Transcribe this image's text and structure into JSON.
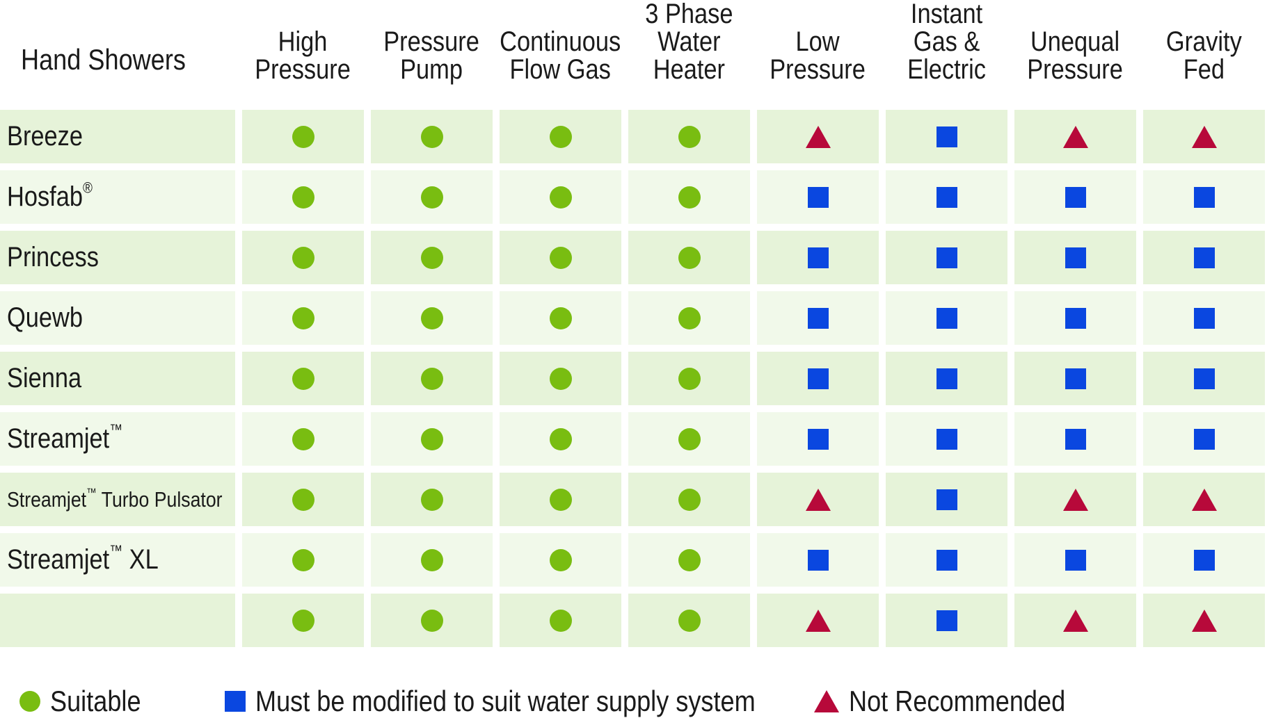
{
  "table": {
    "title": "Hand Showers",
    "columns": [
      "High\nPressure",
      "Pressure\nPump",
      "Continuous\nFlow Gas",
      "3 Phase\nWater\nHeater",
      "Low\nPressure",
      "Instant\nGas &\nElectric",
      "Unequal\nPressure",
      "Gravity\nFed"
    ],
    "rows": [
      {
        "name": "Breeze",
        "mark": "",
        "values": [
          "suitable",
          "suitable",
          "suitable",
          "suitable",
          "not-recommended",
          "modify",
          "not-recommended",
          "not-recommended"
        ]
      },
      {
        "name": "Hosfab",
        "mark": "®",
        "values": [
          "suitable",
          "suitable",
          "suitable",
          "suitable",
          "modify",
          "modify",
          "modify",
          "modify"
        ]
      },
      {
        "name": "Princess",
        "mark": "",
        "values": [
          "suitable",
          "suitable",
          "suitable",
          "suitable",
          "modify",
          "modify",
          "modify",
          "modify"
        ]
      },
      {
        "name": "Quewb",
        "mark": "",
        "values": [
          "suitable",
          "suitable",
          "suitable",
          "suitable",
          "modify",
          "modify",
          "modify",
          "modify"
        ]
      },
      {
        "name": "Sienna",
        "mark": "",
        "values": [
          "suitable",
          "suitable",
          "suitable",
          "suitable",
          "modify",
          "modify",
          "modify",
          "modify"
        ]
      },
      {
        "name": "Streamjet",
        "mark": "™",
        "values": [
          "suitable",
          "suitable",
          "suitable",
          "suitable",
          "modify",
          "modify",
          "modify",
          "modify"
        ]
      },
      {
        "name": "Streamjet",
        "mark": "™",
        "suffix": " Turbo Pulsator",
        "small": true,
        "values": [
          "suitable",
          "suitable",
          "suitable",
          "suitable",
          "not-recommended",
          "modify",
          "not-recommended",
          "not-recommended"
        ]
      },
      {
        "name": "Streamjet",
        "mark": "™",
        "suffix": " XL",
        "values": [
          "suitable",
          "suitable",
          "suitable",
          "suitable",
          "modify",
          "modify",
          "modify",
          "modify"
        ]
      },
      {
        "name": "",
        "mark": "",
        "values": [
          "suitable",
          "suitable",
          "suitable",
          "suitable",
          "not-recommended",
          "modify",
          "not-recommended",
          "not-recommended"
        ]
      }
    ]
  },
  "legend": {
    "suitable": "Suitable",
    "modify": "Must be modified to suit water supply system",
    "not_recommended": "Not Recommended"
  },
  "colors": {
    "suitable": "#79bd11",
    "modify": "#0a47e0",
    "not_recommended": "#b7093a",
    "row_bg_dark": "#e6f3d9",
    "row_bg_light": "#f1f9ea"
  },
  "icons": {
    "suitable": "green-circle-icon",
    "modify": "blue-square-icon",
    "not-recommended": "red-triangle-icon"
  }
}
